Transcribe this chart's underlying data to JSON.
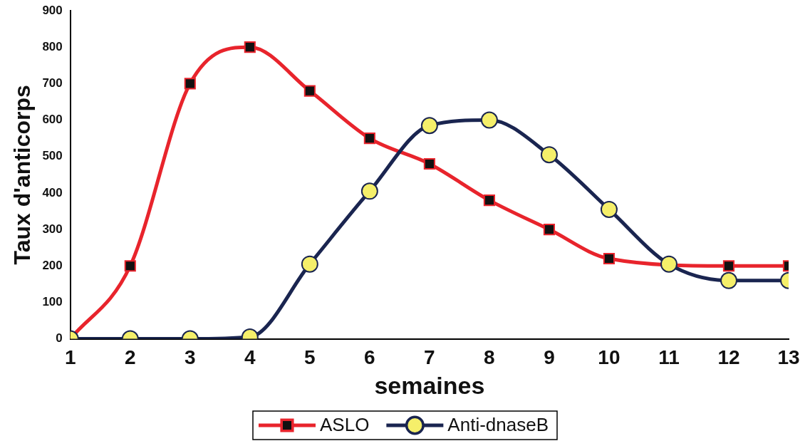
{
  "chart_data": {
    "type": "line",
    "xlabel": "semaines",
    "ylabel": "Taux d'anticorps",
    "x": [
      1,
      2,
      3,
      4,
      5,
      6,
      7,
      8,
      9,
      10,
      11,
      12,
      13
    ],
    "xlim": [
      1,
      13
    ],
    "xticks": [
      1,
      2,
      3,
      4,
      5,
      6,
      7,
      8,
      9,
      10,
      11,
      12,
      13
    ],
    "series": [
      {
        "name": "ASLO",
        "color": "#e8242c",
        "marker": "square",
        "values": [
          0,
          200,
          700,
          800,
          680,
          550,
          480,
          380,
          300,
          220,
          null,
          200,
          200
        ]
      },
      {
        "name": "Anti-dnaseB",
        "color": "#1a2550",
        "marker": "circle",
        "values": [
          0,
          0,
          0,
          5,
          205,
          405,
          585,
          600,
          505,
          355,
          205,
          160,
          160
        ]
      }
    ],
    "ylim": [
      0,
      900
    ],
    "yticks": [
      0,
      100,
      200,
      300,
      400,
      500,
      600,
      700,
      800,
      900
    ],
    "grid": false,
    "legend": "bottom"
  }
}
